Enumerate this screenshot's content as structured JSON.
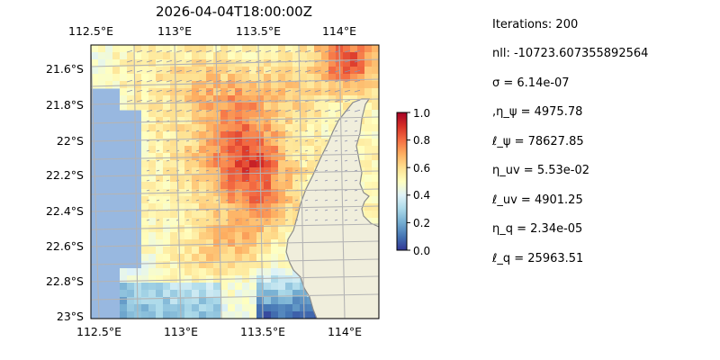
{
  "map": {
    "title": "2026-04-04T18:00:00Z",
    "lon_labels": [
      "112.5°E",
      "113°E",
      "113.5°E",
      "114°E"
    ],
    "lat_labels": [
      "21.6°S",
      "21.8°S",
      "22°S",
      "22.2°S",
      "22.4°S",
      "22.6°S",
      "22.8°S",
      "23°S"
    ],
    "lon_range": [
      112.5,
      114.2
    ],
    "lat_range": [
      -23.0,
      -21.45
    ],
    "colors": {
      "ocean_nodata": "#98b8e0",
      "land": "#f0eedc",
      "coast": "#8a8a8a",
      "grid": "#b4b4b4"
    }
  },
  "colorbar": {
    "ticks": [
      "1.0",
      "0.8",
      "0.6",
      "0.4",
      "0.2",
      "0.0"
    ],
    "range": [
      0.0,
      1.0
    ],
    "colormap": "RdYlBu_r"
  },
  "stats": [
    "Iterations: 200",
    "nll: -10723.607355892564",
    "σ = 6.14e-07",
    ",η_ψ = 4975.78",
    "ℓ_ψ = 78627.85",
    "η_uv = 5.53e-02",
    "ℓ_uv = 4901.25",
    "η_q = 2.34e-05",
    "ℓ_q = 25963.51"
  ]
}
